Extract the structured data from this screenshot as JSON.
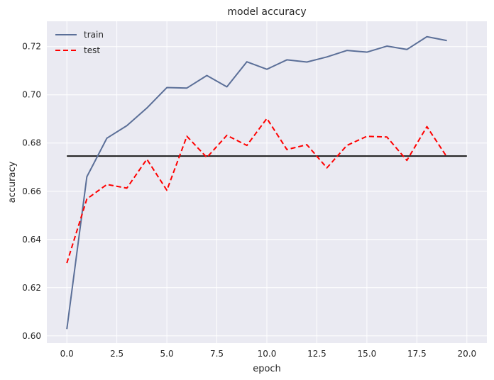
{
  "chart_data": {
    "type": "line",
    "title": "model accuracy",
    "xlabel": "epoch",
    "ylabel": "accuracy",
    "xlim": [
      -1.0,
      21.0
    ],
    "ylim": [
      0.597,
      0.7305
    ],
    "xticks": [
      0.0,
      2.5,
      5.0,
      7.5,
      10.0,
      12.5,
      15.0,
      17.5,
      20.0
    ],
    "xtick_labels": [
      "0.0",
      "2.5",
      "5.0",
      "7.5",
      "10.0",
      "12.5",
      "15.0",
      "17.5",
      "20.0"
    ],
    "yticks": [
      0.6,
      0.62,
      0.64,
      0.66,
      0.68,
      0.7,
      0.72
    ],
    "ytick_labels": [
      "0.60",
      "0.62",
      "0.64",
      "0.66",
      "0.68",
      "0.70",
      "0.72"
    ],
    "grid": true,
    "legend_position": "top-left",
    "x": [
      0,
      1,
      2,
      3,
      4,
      5,
      6,
      7,
      8,
      9,
      10,
      11,
      12,
      13,
      14,
      15,
      16,
      17,
      18,
      19
    ],
    "series": [
      {
        "name": "train",
        "color": "#5b6f98",
        "style": "solid",
        "values": [
          0.6028,
          0.666,
          0.682,
          0.6872,
          0.6945,
          0.703,
          0.7028,
          0.708,
          0.7033,
          0.7137,
          0.7106,
          0.7145,
          0.7136,
          0.7157,
          0.7184,
          0.7177,
          0.7202,
          0.7188,
          0.7241,
          0.7225
        ]
      },
      {
        "name": "test",
        "color": "#ff0000",
        "style": "dashed",
        "values": [
          0.6302,
          0.6568,
          0.6628,
          0.6613,
          0.6733,
          0.6604,
          0.6828,
          0.674,
          0.6832,
          0.679,
          0.6902,
          0.6773,
          0.6793,
          0.6697,
          0.679,
          0.6828,
          0.6825,
          0.6728,
          0.6868,
          0.6742
        ]
      }
    ],
    "reference_lines": [
      {
        "color": "#1a1a1a",
        "y": 0.6746,
        "x_from": 0,
        "x_to": 20
      }
    ],
    "colors": {
      "plot_background": "#eaeaf2",
      "grid": "#ffffff",
      "text": "#262626"
    }
  }
}
